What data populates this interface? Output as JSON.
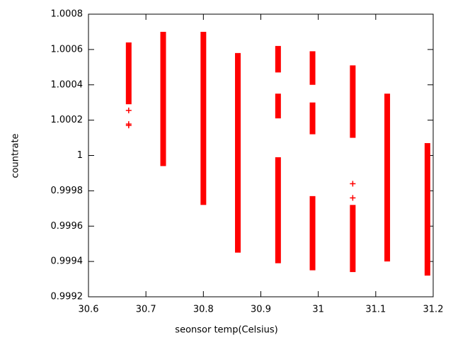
{
  "chart_data": {
    "type": "strip",
    "xlabel": "seonsor temp(Celsius)",
    "ylabel": "countrate",
    "color": "#ff0000",
    "xlim": [
      30.6,
      31.2
    ],
    "xticks": [
      30.6,
      30.7,
      30.8,
      30.9,
      31,
      31.1,
      31.2
    ],
    "ylim": [
      0.9992,
      1.0008
    ],
    "yticks": [
      0.9992,
      0.9994,
      0.9996,
      0.9998,
      1,
      1.0002,
      1.0004,
      1.0006,
      1.0008
    ],
    "segments": [
      [
        30.67,
        1.00029,
        1.00064
      ],
      [
        30.73,
        0.99994,
        1.0007
      ],
      [
        30.8,
        0.99972,
        1.0007
      ],
      [
        30.86,
        0.99945,
        1.00058
      ],
      [
        30.93,
        1.00047,
        1.00062
      ],
      [
        30.93,
        1.00021,
        1.00035
      ],
      [
        30.93,
        0.99939,
        0.99999
      ],
      [
        30.99,
        1.0004,
        1.00059
      ],
      [
        30.99,
        1.00012,
        1.0003
      ],
      [
        30.99,
        0.99935,
        0.99977
      ],
      [
        31.06,
        1.0001,
        1.00051
      ],
      [
        31.06,
        0.99934,
        0.99972
      ],
      [
        31.12,
        0.9994,
        1.00035
      ],
      [
        31.19,
        0.99932,
        1.00007
      ]
    ],
    "points": [
      [
        30.67,
        1.000255
      ],
      [
        30.67,
        1.000178
      ],
      [
        30.67,
        1.00017
      ],
      [
        31.06,
        0.99984
      ],
      [
        31.06,
        0.99976
      ]
    ]
  }
}
